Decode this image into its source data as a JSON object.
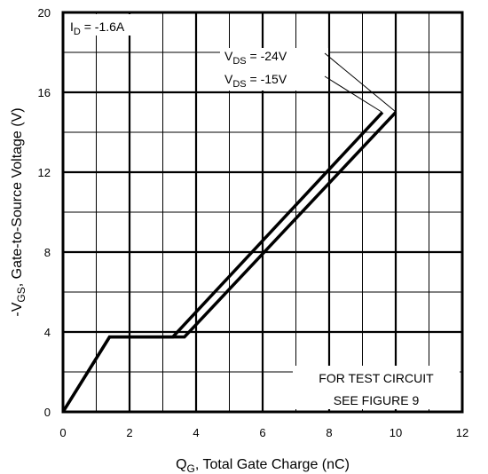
{
  "chart_data": {
    "type": "line",
    "title": "",
    "xlabel": {
      "main": "Q",
      "sub": "G",
      "rest": ", Total Gate Charge (nC)"
    },
    "ylabel": {
      "main": "-V",
      "sub": "GS",
      "rest": ", Gate-to-Source Voltage (V)"
    },
    "xlim": [
      0,
      12
    ],
    "ylim": [
      0,
      20
    ],
    "x_ticks": [
      "0",
      "2",
      "4",
      "6",
      "8",
      "10",
      "12"
    ],
    "y_ticks": [
      "0",
      "4",
      "8",
      "12",
      "16",
      "20"
    ],
    "x_minor_step": 1,
    "y_minor_step": 2,
    "grid": true,
    "series": [
      {
        "name": "V_DS = -24V",
        "x": [
          0,
          1.4,
          3.65,
          10.0
        ],
        "y": [
          0,
          3.75,
          3.75,
          15.0
        ]
      },
      {
        "name": "V_DS = -15V",
        "x": [
          0,
          1.4,
          3.3,
          9.6
        ],
        "y": [
          0,
          3.75,
          3.75,
          15.0
        ]
      }
    ],
    "annotations": {
      "condition": {
        "main": "I",
        "sub": "D",
        "rest": " = -1.6A"
      },
      "vds_24": {
        "main": "V",
        "sub": "DS",
        "rest": " = -24V"
      },
      "vds_15": {
        "main": "V",
        "sub": "DS",
        "rest": " = -15V"
      },
      "test_note_line1": "FOR TEST CIRCUIT",
      "test_note_line2": "SEE FIGURE 9"
    }
  }
}
